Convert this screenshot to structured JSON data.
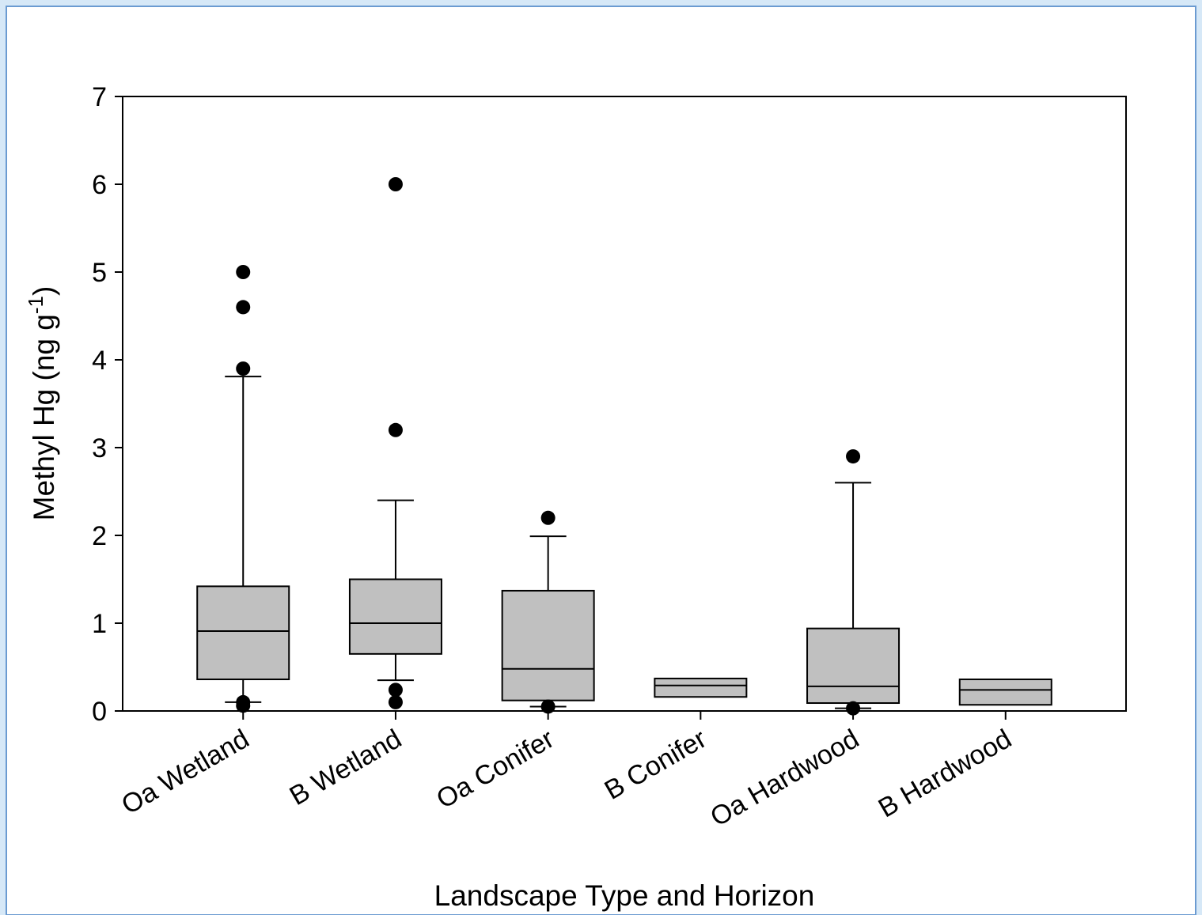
{
  "chart_data": {
    "type": "box",
    "x_label": "Landscape Type and Horizon",
    "y_label": [
      "Methyl Hg (ng g",
      "-1",
      ")"
    ],
    "categories": [
      "Oa Wetland",
      "B Wetland",
      "Oa Conifer",
      "B Conifer",
      "Oa Hardwood",
      "B Hardwood"
    ],
    "boxes": [
      {
        "low": 0.1,
        "q1": 0.36,
        "median": 0.91,
        "q3": 1.42,
        "high": 3.81,
        "outliers": [
          5.0,
          4.6,
          3.9,
          0.1,
          0.06
        ]
      },
      {
        "low": 0.35,
        "q1": 0.65,
        "median": 1.0,
        "q3": 1.5,
        "high": 2.4,
        "outliers": [
          6.0,
          3.2,
          0.24,
          0.1
        ]
      },
      {
        "low": 0.05,
        "q1": 0.12,
        "median": 0.48,
        "q3": 1.37,
        "high": 1.99,
        "outliers": [
          2.2,
          0.05
        ]
      },
      {
        "low": null,
        "q1": 0.16,
        "median": 0.29,
        "q3": 0.37,
        "high": null,
        "outliers": []
      },
      {
        "low": 0.03,
        "q1": 0.09,
        "median": 0.28,
        "q3": 0.94,
        "high": 2.6,
        "outliers": [
          2.9,
          0.03
        ]
      },
      {
        "low": null,
        "q1": 0.07,
        "median": 0.24,
        "q3": 0.36,
        "high": null,
        "outliers": []
      }
    ],
    "color": "#c0c0c0",
    "ylim": [
      0,
      7
    ],
    "yticks": [
      0,
      1,
      2,
      3,
      4,
      5,
      6,
      7
    ],
    "grid": false
  }
}
